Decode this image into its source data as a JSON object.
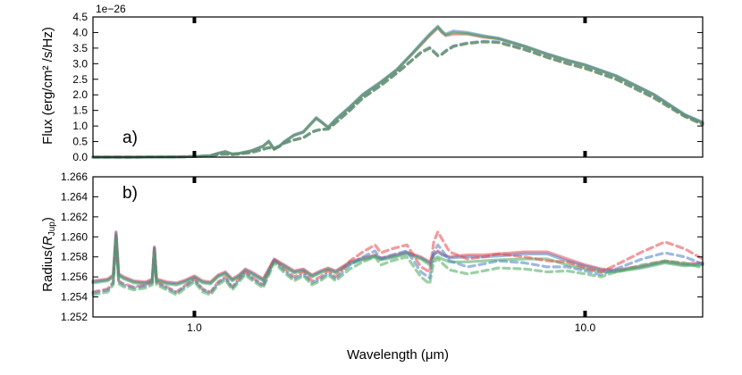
{
  "chart_data": [
    {
      "type": "line",
      "panel_label": "a)",
      "ylabel": "Flux (erg/cm² /s/Hz)",
      "offset_text": "1e−26",
      "xscale": "log",
      "xlim": [
        0.55,
        20.0
      ],
      "ylim": [
        0.0,
        4.5
      ],
      "yticks": [
        "0.0",
        "0.5",
        "1.0",
        "1.5",
        "2.0",
        "2.5",
        "3.0",
        "3.5",
        "4.0",
        "4.5"
      ],
      "grid": false,
      "legend": "none",
      "x": [
        0.55,
        0.7,
        0.9,
        1.0,
        1.1,
        1.15,
        1.2,
        1.25,
        1.3,
        1.4,
        1.5,
        1.55,
        1.6,
        1.65,
        1.7,
        1.8,
        1.9,
        2.0,
        2.05,
        2.1,
        2.2,
        2.3,
        2.5,
        2.7,
        3.0,
        3.3,
        3.6,
        3.8,
        4.0,
        4.2,
        4.3,
        4.4,
        4.6,
        5.0,
        5.5,
        6.0,
        7.0,
        8.0,
        9.0,
        10.0,
        12.0,
        15.0,
        18.0,
        20.0
      ],
      "series": [
        {
          "style": "solid",
          "color": "#e8474c",
          "values": [
            0.0,
            0.0,
            0.01,
            0.02,
            0.05,
            0.12,
            0.18,
            0.1,
            0.12,
            0.2,
            0.35,
            0.5,
            0.25,
            0.35,
            0.5,
            0.7,
            0.8,
            1.1,
            1.25,
            1.15,
            0.95,
            1.2,
            1.6,
            2.0,
            2.4,
            2.8,
            3.3,
            3.6,
            3.9,
            4.15,
            4.0,
            3.9,
            3.95,
            3.95,
            3.85,
            3.8,
            3.55,
            3.3,
            3.1,
            2.95,
            2.6,
            2.0,
            1.35,
            1.1
          ]
        },
        {
          "style": "solid",
          "color": "#4e7fc4",
          "values": [
            0.0,
            0.0,
            0.01,
            0.02,
            0.05,
            0.13,
            0.18,
            0.1,
            0.12,
            0.21,
            0.36,
            0.52,
            0.26,
            0.35,
            0.5,
            0.72,
            0.82,
            1.12,
            1.27,
            1.17,
            0.96,
            1.22,
            1.62,
            2.02,
            2.42,
            2.82,
            3.32,
            3.65,
            3.95,
            4.2,
            4.05,
            3.95,
            4.05,
            4.0,
            3.9,
            3.82,
            3.57,
            3.32,
            3.12,
            2.97,
            2.62,
            2.02,
            1.37,
            1.12
          ]
        },
        {
          "style": "solid",
          "color": "#48a95a",
          "values": [
            0.0,
            0.0,
            0.01,
            0.02,
            0.05,
            0.12,
            0.17,
            0.1,
            0.12,
            0.2,
            0.35,
            0.5,
            0.25,
            0.34,
            0.49,
            0.7,
            0.8,
            1.1,
            1.24,
            1.15,
            0.95,
            1.2,
            1.6,
            2.0,
            2.4,
            2.8,
            3.3,
            3.62,
            3.92,
            4.18,
            4.02,
            3.92,
            4.0,
            3.97,
            3.87,
            3.8,
            3.55,
            3.3,
            3.1,
            2.95,
            2.6,
            2.0,
            1.35,
            1.1
          ]
        },
        {
          "style": "dashed",
          "color": "#e8474c",
          "values": [
            0.0,
            0.0,
            0.01,
            0.02,
            0.04,
            0.08,
            0.1,
            0.08,
            0.1,
            0.15,
            0.25,
            0.3,
            0.28,
            0.35,
            0.45,
            0.55,
            0.62,
            0.8,
            0.85,
            0.88,
            0.9,
            1.1,
            1.5,
            1.9,
            2.3,
            2.7,
            3.1,
            3.35,
            3.5,
            3.25,
            3.3,
            3.4,
            3.55,
            3.65,
            3.7,
            3.68,
            3.45,
            3.2,
            3.0,
            2.85,
            2.5,
            1.9,
            1.3,
            1.05
          ]
        },
        {
          "style": "dashed",
          "color": "#4e7fc4",
          "values": [
            0.0,
            0.0,
            0.01,
            0.02,
            0.04,
            0.08,
            0.1,
            0.08,
            0.1,
            0.15,
            0.26,
            0.31,
            0.29,
            0.36,
            0.46,
            0.56,
            0.63,
            0.81,
            0.86,
            0.89,
            0.91,
            1.11,
            1.51,
            1.91,
            2.31,
            2.71,
            3.11,
            3.37,
            3.52,
            3.28,
            3.32,
            3.42,
            3.57,
            3.67,
            3.72,
            3.7,
            3.47,
            3.22,
            3.02,
            2.87,
            2.52,
            1.92,
            1.32,
            1.07
          ]
        },
        {
          "style": "dashed",
          "color": "#48a95a",
          "values": [
            0.0,
            0.0,
            0.01,
            0.02,
            0.04,
            0.08,
            0.1,
            0.08,
            0.1,
            0.15,
            0.25,
            0.3,
            0.28,
            0.35,
            0.45,
            0.55,
            0.62,
            0.8,
            0.85,
            0.88,
            0.9,
            1.1,
            1.5,
            1.9,
            2.3,
            2.7,
            3.1,
            3.35,
            3.5,
            3.25,
            3.3,
            3.4,
            3.55,
            3.65,
            3.7,
            3.68,
            3.45,
            3.2,
            3.0,
            2.85,
            2.5,
            1.9,
            1.3,
            1.05
          ]
        }
      ]
    },
    {
      "type": "line",
      "panel_label": "b)",
      "ylabel": "Radius(",
      "ylabel_math": "R",
      "ylabel_sub": "Jup",
      "ylabel_close": ")",
      "xlabel": "Wavelength (μm)",
      "xscale": "log",
      "xlim": [
        0.55,
        20.0
      ],
      "ylim": [
        1.252,
        1.266
      ],
      "yticks": [
        "1.252",
        "1.254",
        "1.256",
        "1.258",
        "1.260",
        "1.262",
        "1.264",
        "1.266"
      ],
      "xticks": [
        {
          "value": 1.0,
          "label": "1.0"
        },
        {
          "value": 10.0,
          "label": "10.0"
        }
      ],
      "grid": false,
      "legend": "none",
      "x": [
        0.55,
        0.6,
        0.62,
        0.63,
        0.64,
        0.66,
        0.7,
        0.75,
        0.78,
        0.79,
        0.8,
        0.85,
        0.9,
        0.95,
        1.0,
        1.05,
        1.1,
        1.15,
        1.2,
        1.25,
        1.3,
        1.35,
        1.4,
        1.5,
        1.6,
        1.7,
        1.8,
        1.9,
        2.0,
        2.1,
        2.2,
        2.3,
        2.5,
        2.7,
        2.9,
        3.0,
        3.2,
        3.5,
        3.8,
        4.0,
        4.1,
        4.2,
        4.3,
        4.5,
        5.0,
        5.5,
        6.0,
        7.0,
        8.0,
        9.0,
        10.0,
        11.0,
        12.0,
        14.0,
        16.0,
        18.0,
        20.0
      ],
      "series": [
        {
          "style": "solid",
          "color": "#e8474c",
          "values": [
            1.2556,
            1.2558,
            1.2562,
            1.2605,
            1.2563,
            1.256,
            1.2556,
            1.2555,
            1.2558,
            1.259,
            1.2558,
            1.2555,
            1.2554,
            1.2557,
            1.2561,
            1.2556,
            1.2555,
            1.2562,
            1.2565,
            1.2558,
            1.2562,
            1.2568,
            1.2565,
            1.2558,
            1.2578,
            1.2572,
            1.2566,
            1.2568,
            1.2562,
            1.2566,
            1.2569,
            1.2566,
            1.2575,
            1.2579,
            1.2582,
            1.2579,
            1.2581,
            1.2585,
            1.258,
            1.2575,
            1.2583,
            1.2586,
            1.2583,
            1.258,
            1.2582,
            1.2582,
            1.2583,
            1.2585,
            1.2585,
            1.2578,
            1.2572,
            1.2568,
            1.2567,
            1.2571,
            1.2576,
            1.2573,
            1.2574
          ]
        },
        {
          "style": "solid",
          "color": "#4e7fc4",
          "values": [
            1.2555,
            1.2557,
            1.2561,
            1.2604,
            1.2562,
            1.2559,
            1.2555,
            1.2554,
            1.2557,
            1.2589,
            1.2557,
            1.2554,
            1.2553,
            1.2556,
            1.256,
            1.2555,
            1.2554,
            1.2561,
            1.2564,
            1.2557,
            1.2561,
            1.2567,
            1.2564,
            1.2557,
            1.2577,
            1.2571,
            1.2565,
            1.2567,
            1.2561,
            1.2565,
            1.2568,
            1.2565,
            1.2574,
            1.2578,
            1.2581,
            1.2578,
            1.258,
            1.2584,
            1.2579,
            1.2574,
            1.2582,
            1.2585,
            1.2582,
            1.2579,
            1.258,
            1.258,
            1.2581,
            1.2583,
            1.2583,
            1.2576,
            1.2571,
            1.2567,
            1.2566,
            1.257,
            1.2575,
            1.2572,
            1.2573
          ]
        },
        {
          "style": "solid",
          "color": "#48a95a",
          "values": [
            1.2554,
            1.2556,
            1.256,
            1.2602,
            1.2561,
            1.2558,
            1.2554,
            1.2553,
            1.2556,
            1.2587,
            1.2556,
            1.2553,
            1.2552,
            1.2555,
            1.2559,
            1.2554,
            1.2553,
            1.256,
            1.2563,
            1.2556,
            1.256,
            1.2566,
            1.2563,
            1.2556,
            1.2576,
            1.257,
            1.2564,
            1.2566,
            1.256,
            1.2564,
            1.2567,
            1.2564,
            1.2573,
            1.2577,
            1.258,
            1.2577,
            1.2579,
            1.2583,
            1.2578,
            1.2572,
            1.2578,
            1.258,
            1.2578,
            1.2575,
            1.2575,
            1.2576,
            1.2577,
            1.2578,
            1.2578,
            1.2572,
            1.2568,
            1.2565,
            1.2565,
            1.2569,
            1.2574,
            1.2571,
            1.2572
          ]
        },
        {
          "style": "dashed",
          "color": "#e8474c",
          "values": [
            1.2545,
            1.2548,
            1.2555,
            1.2603,
            1.2556,
            1.2553,
            1.255,
            1.2552,
            1.2555,
            1.259,
            1.2555,
            1.255,
            1.2545,
            1.2552,
            1.2558,
            1.2548,
            1.2545,
            1.2555,
            1.256,
            1.255,
            1.2558,
            1.2565,
            1.256,
            1.2552,
            1.2578,
            1.2568,
            1.256,
            1.2565,
            1.2556,
            1.256,
            1.2566,
            1.256,
            1.2576,
            1.2585,
            1.2592,
            1.2584,
            1.2588,
            1.2592,
            1.257,
            1.2565,
            1.2595,
            1.2605,
            1.2598,
            1.2585,
            1.2578,
            1.258,
            1.2583,
            1.258,
            1.2576,
            1.2575,
            1.2569,
            1.2565,
            1.2572,
            1.2585,
            1.2595,
            1.2588,
            1.2578
          ]
        },
        {
          "style": "dashed",
          "color": "#4e7fc4",
          "values": [
            1.2544,
            1.2547,
            1.2554,
            1.2601,
            1.2555,
            1.2552,
            1.2549,
            1.2551,
            1.2554,
            1.2588,
            1.2554,
            1.2549,
            1.2544,
            1.2551,
            1.2557,
            1.2547,
            1.2544,
            1.2554,
            1.2559,
            1.2549,
            1.2557,
            1.2564,
            1.2559,
            1.2551,
            1.2576,
            1.2566,
            1.2558,
            1.2563,
            1.2554,
            1.2558,
            1.2564,
            1.2558,
            1.2572,
            1.258,
            1.2586,
            1.2578,
            1.2582,
            1.2586,
            1.2565,
            1.2559,
            1.2585,
            1.2592,
            1.2587,
            1.2576,
            1.257,
            1.2573,
            1.2576,
            1.2574,
            1.257,
            1.257,
            1.2566,
            1.2562,
            1.2568,
            1.2578,
            1.2584,
            1.258,
            1.2573
          ]
        },
        {
          "style": "dashed",
          "color": "#48a95a",
          "values": [
            1.2542,
            1.2545,
            1.2552,
            1.2599,
            1.2553,
            1.255,
            1.2547,
            1.2549,
            1.2552,
            1.2586,
            1.2552,
            1.2547,
            1.2542,
            1.2549,
            1.2555,
            1.2545,
            1.2542,
            1.2552,
            1.2557,
            1.2547,
            1.2555,
            1.2562,
            1.2557,
            1.2549,
            1.2574,
            1.2564,
            1.2556,
            1.2561,
            1.2552,
            1.2556,
            1.2562,
            1.2556,
            1.2568,
            1.2575,
            1.258,
            1.2572,
            1.2576,
            1.258,
            1.256,
            1.2553,
            1.2575,
            1.2578,
            1.2574,
            1.2567,
            1.2563,
            1.2566,
            1.2569,
            1.2568,
            1.2565,
            1.2566,
            1.2563,
            1.256,
            1.2565,
            1.2572,
            1.2576,
            1.2574,
            1.2569
          ]
        }
      ]
    }
  ]
}
